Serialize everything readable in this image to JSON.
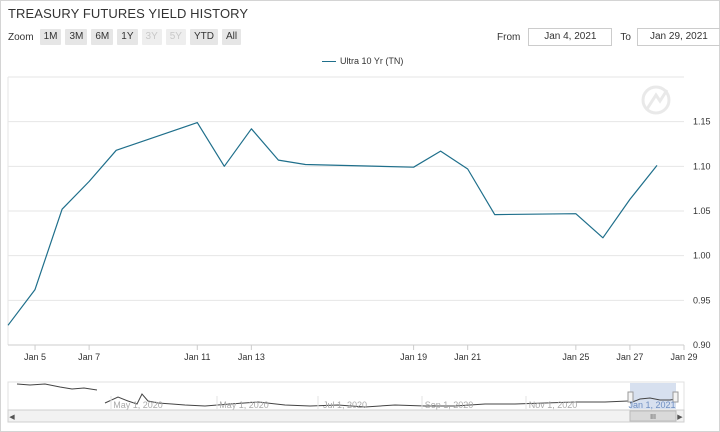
{
  "title": "TREASURY FUTURES YIELD HISTORY",
  "zoom": {
    "label": "Zoom",
    "buttons": [
      {
        "label": "1M",
        "enabled": true
      },
      {
        "label": "3M",
        "enabled": true
      },
      {
        "label": "6M",
        "enabled": true
      },
      {
        "label": "1Y",
        "enabled": true
      },
      {
        "label": "3Y",
        "enabled": false
      },
      {
        "label": "5Y",
        "enabled": false
      },
      {
        "label": "YTD",
        "enabled": true
      },
      {
        "label": "All",
        "enabled": true
      }
    ]
  },
  "range": {
    "from_label": "From",
    "from_value": "Jan 4, 2021",
    "to_label": "To",
    "to_value": "Jan 29, 2021"
  },
  "navigator": {
    "labels": [
      "May 1, 2020",
      "May 1, 2020",
      "Jul 1, 2020",
      "Sep 1, 2020",
      "Nov 1, 2020",
      "Jan 1, 2021"
    ],
    "scroll_grip": "III"
  },
  "chart_data": {
    "type": "line",
    "series": [
      {
        "name": "Ultra 10 Yr (TN)",
        "color": "#1f6f8b",
        "points": [
          {
            "x": "2021-01-04",
            "y": 0.922
          },
          {
            "x": "2021-01-05",
            "y": 0.962
          },
          {
            "x": "2021-01-06",
            "y": 1.052
          },
          {
            "x": "2021-01-07",
            "y": 1.083
          },
          {
            "x": "2021-01-08",
            "y": 1.118
          },
          {
            "x": "2021-01-11",
            "y": 1.149
          },
          {
            "x": "2021-01-12",
            "y": 1.1
          },
          {
            "x": "2021-01-13",
            "y": 1.142
          },
          {
            "x": "2021-01-14",
            "y": 1.107
          },
          {
            "x": "2021-01-15",
            "y": 1.102
          },
          {
            "x": "2021-01-19",
            "y": 1.099
          },
          {
            "x": "2021-01-20",
            "y": 1.117
          },
          {
            "x": "2021-01-21",
            "y": 1.097
          },
          {
            "x": "2021-01-22",
            "y": 1.046
          },
          {
            "x": "2021-01-25",
            "y": 1.047
          },
          {
            "x": "2021-01-26",
            "y": 1.02
          },
          {
            "x": "2021-01-27",
            "y": 1.063
          },
          {
            "x": "2021-01-28",
            "y": 1.101
          }
        ]
      }
    ],
    "x_ticks": [
      "Jan 5",
      "Jan 7",
      "Jan 11",
      "Jan 13",
      "Jan 19",
      "Jan 21",
      "Jan 25",
      "Jan 27",
      "Jan 29"
    ],
    "y_ticks": [
      "0.90",
      "0.95",
      "1.00",
      "1.05",
      "1.10",
      "1.15"
    ],
    "ylim": [
      0.9,
      1.2
    ],
    "grid": true,
    "legend_position": "top-center"
  }
}
